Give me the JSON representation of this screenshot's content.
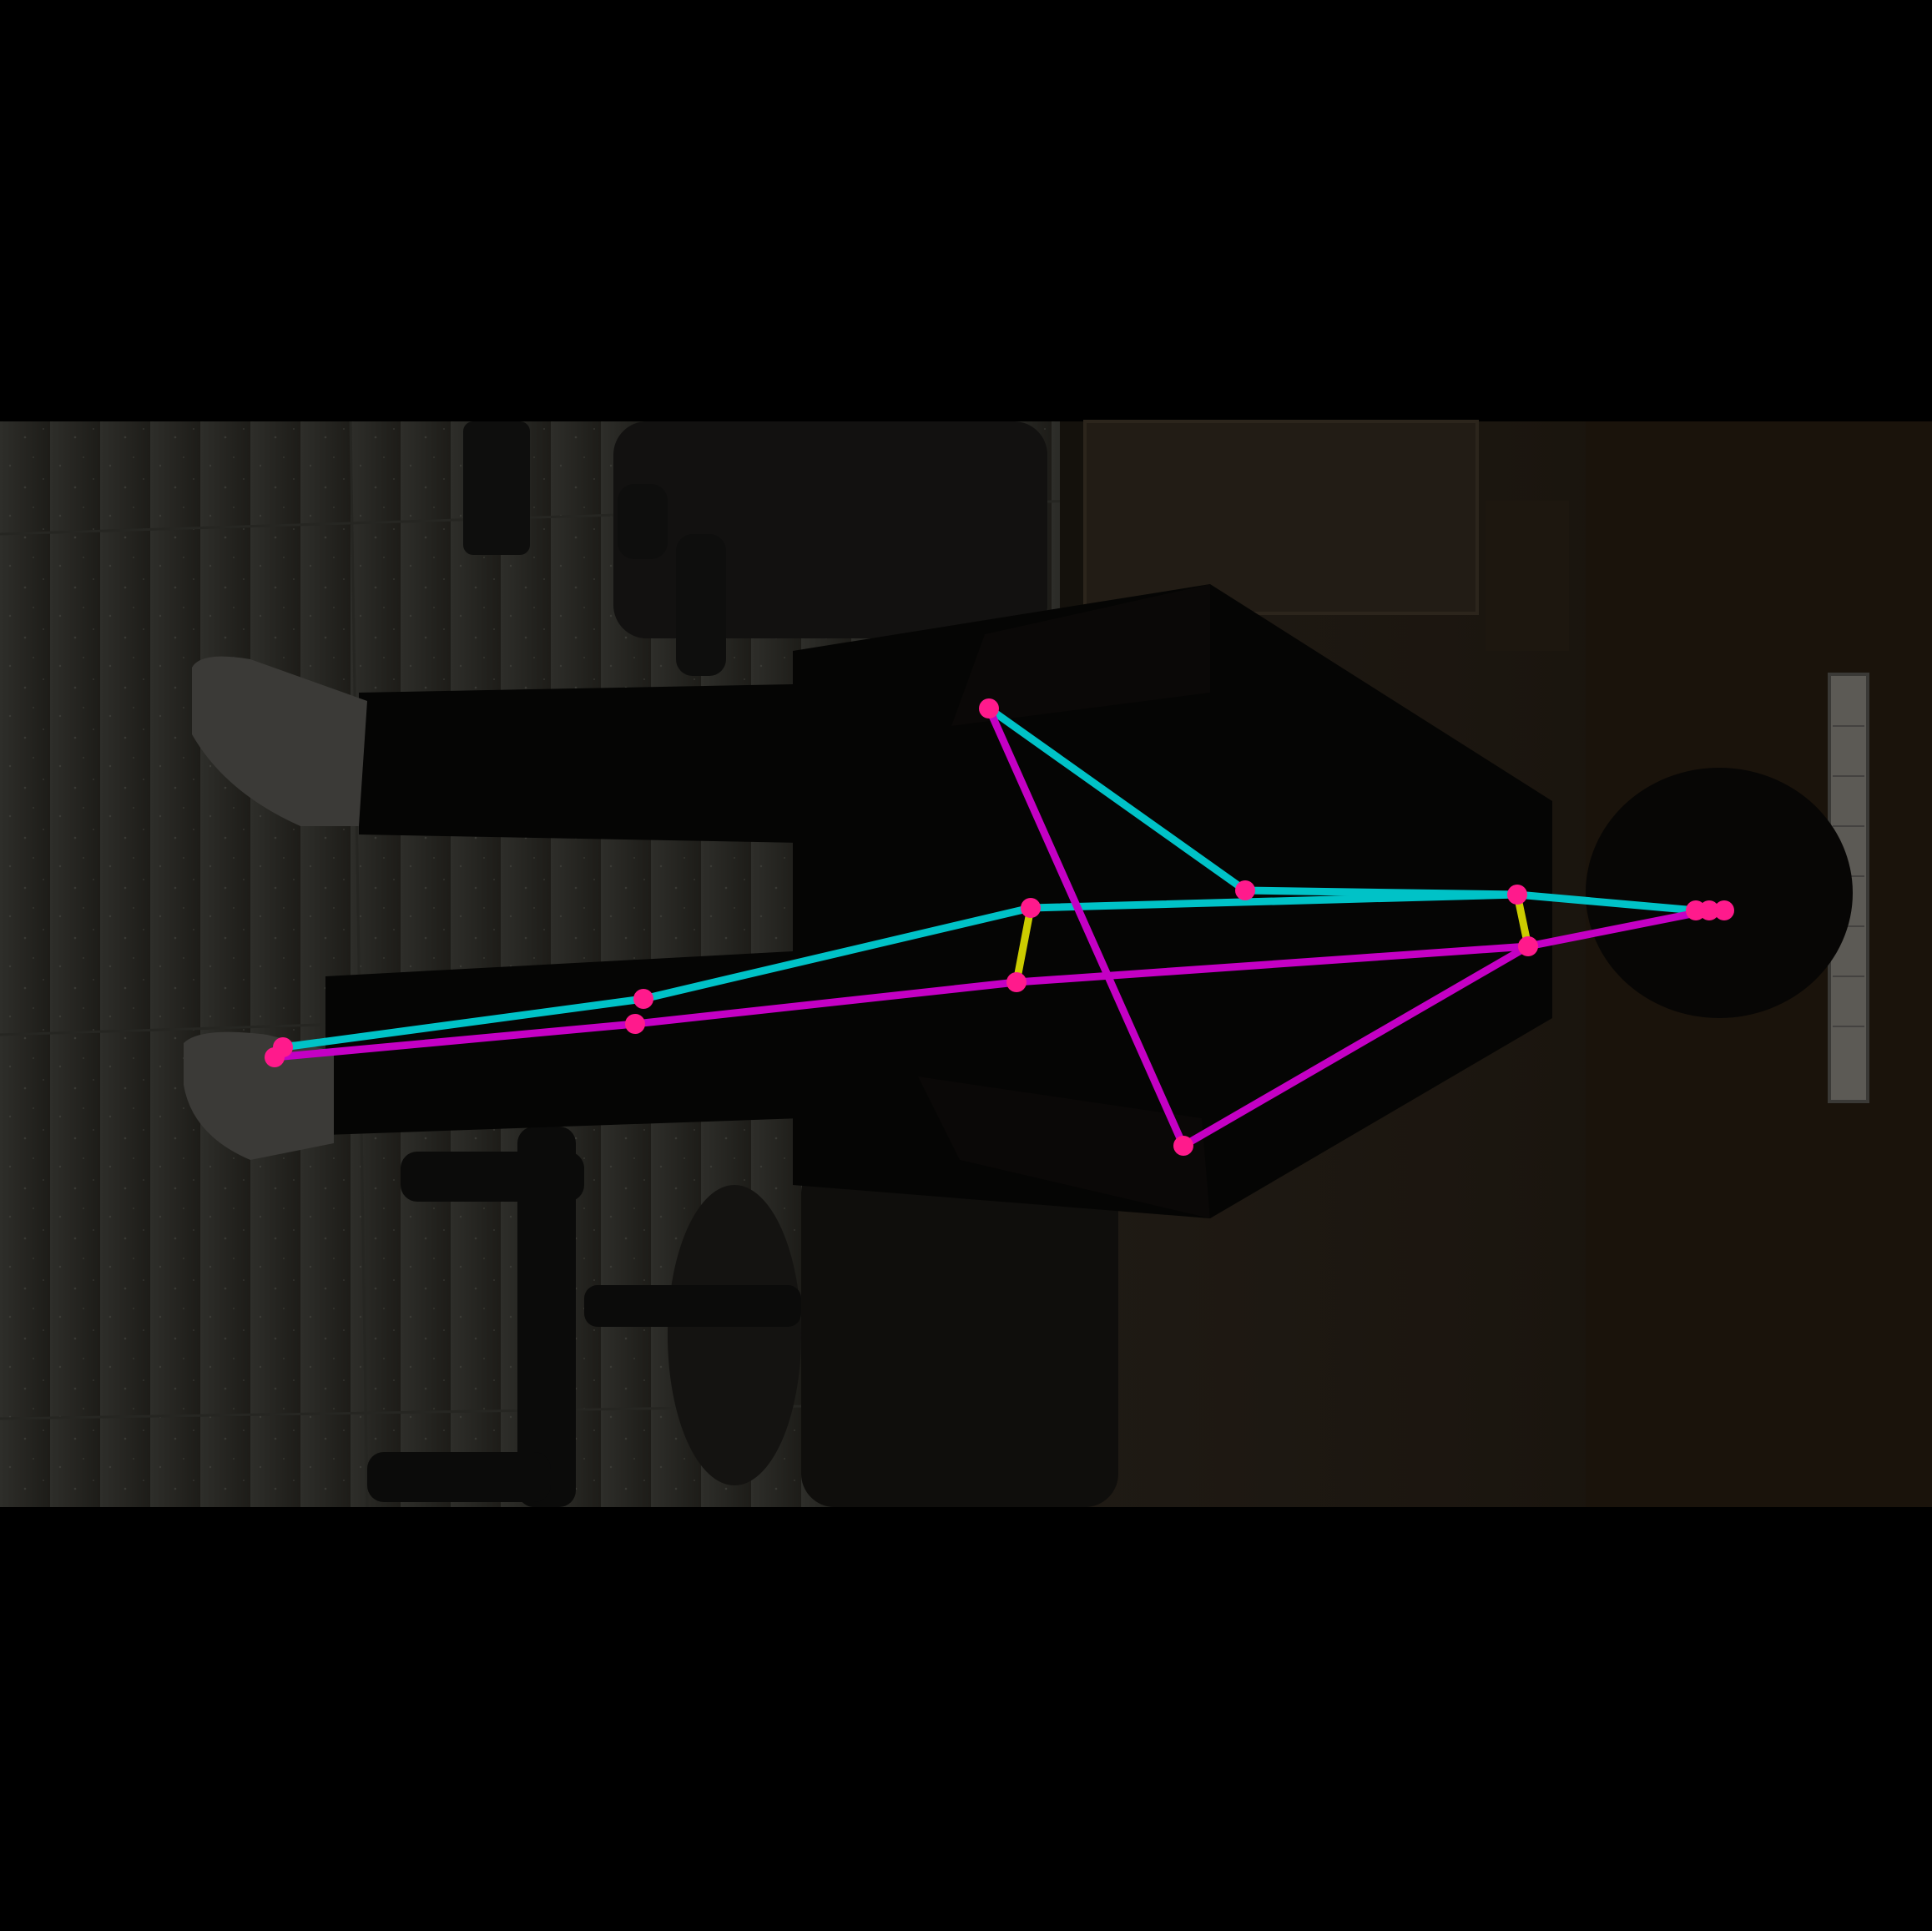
{
  "colors": {
    "background": "#000000",
    "right_side": "#00c2c7",
    "left_side": "#c400c4",
    "center": "#cccc00",
    "keypoint": "#ff1a8c"
  },
  "skeleton": {
    "keypoints": [
      {
        "name": "nose"
      },
      {
        "name": "left-eye"
      },
      {
        "name": "right-eye"
      },
      {
        "name": "left-shoulder"
      },
      {
        "name": "right-shoulder"
      },
      {
        "name": "left-elbow"
      },
      {
        "name": "right-elbow"
      },
      {
        "name": "left-wrist"
      },
      {
        "name": "right-wrist"
      },
      {
        "name": "left-hip"
      },
      {
        "name": "right-hip"
      },
      {
        "name": "left-knee"
      },
      {
        "name": "right-knee"
      },
      {
        "name": "left-ankle"
      },
      {
        "name": "right-ankle"
      }
    ]
  }
}
